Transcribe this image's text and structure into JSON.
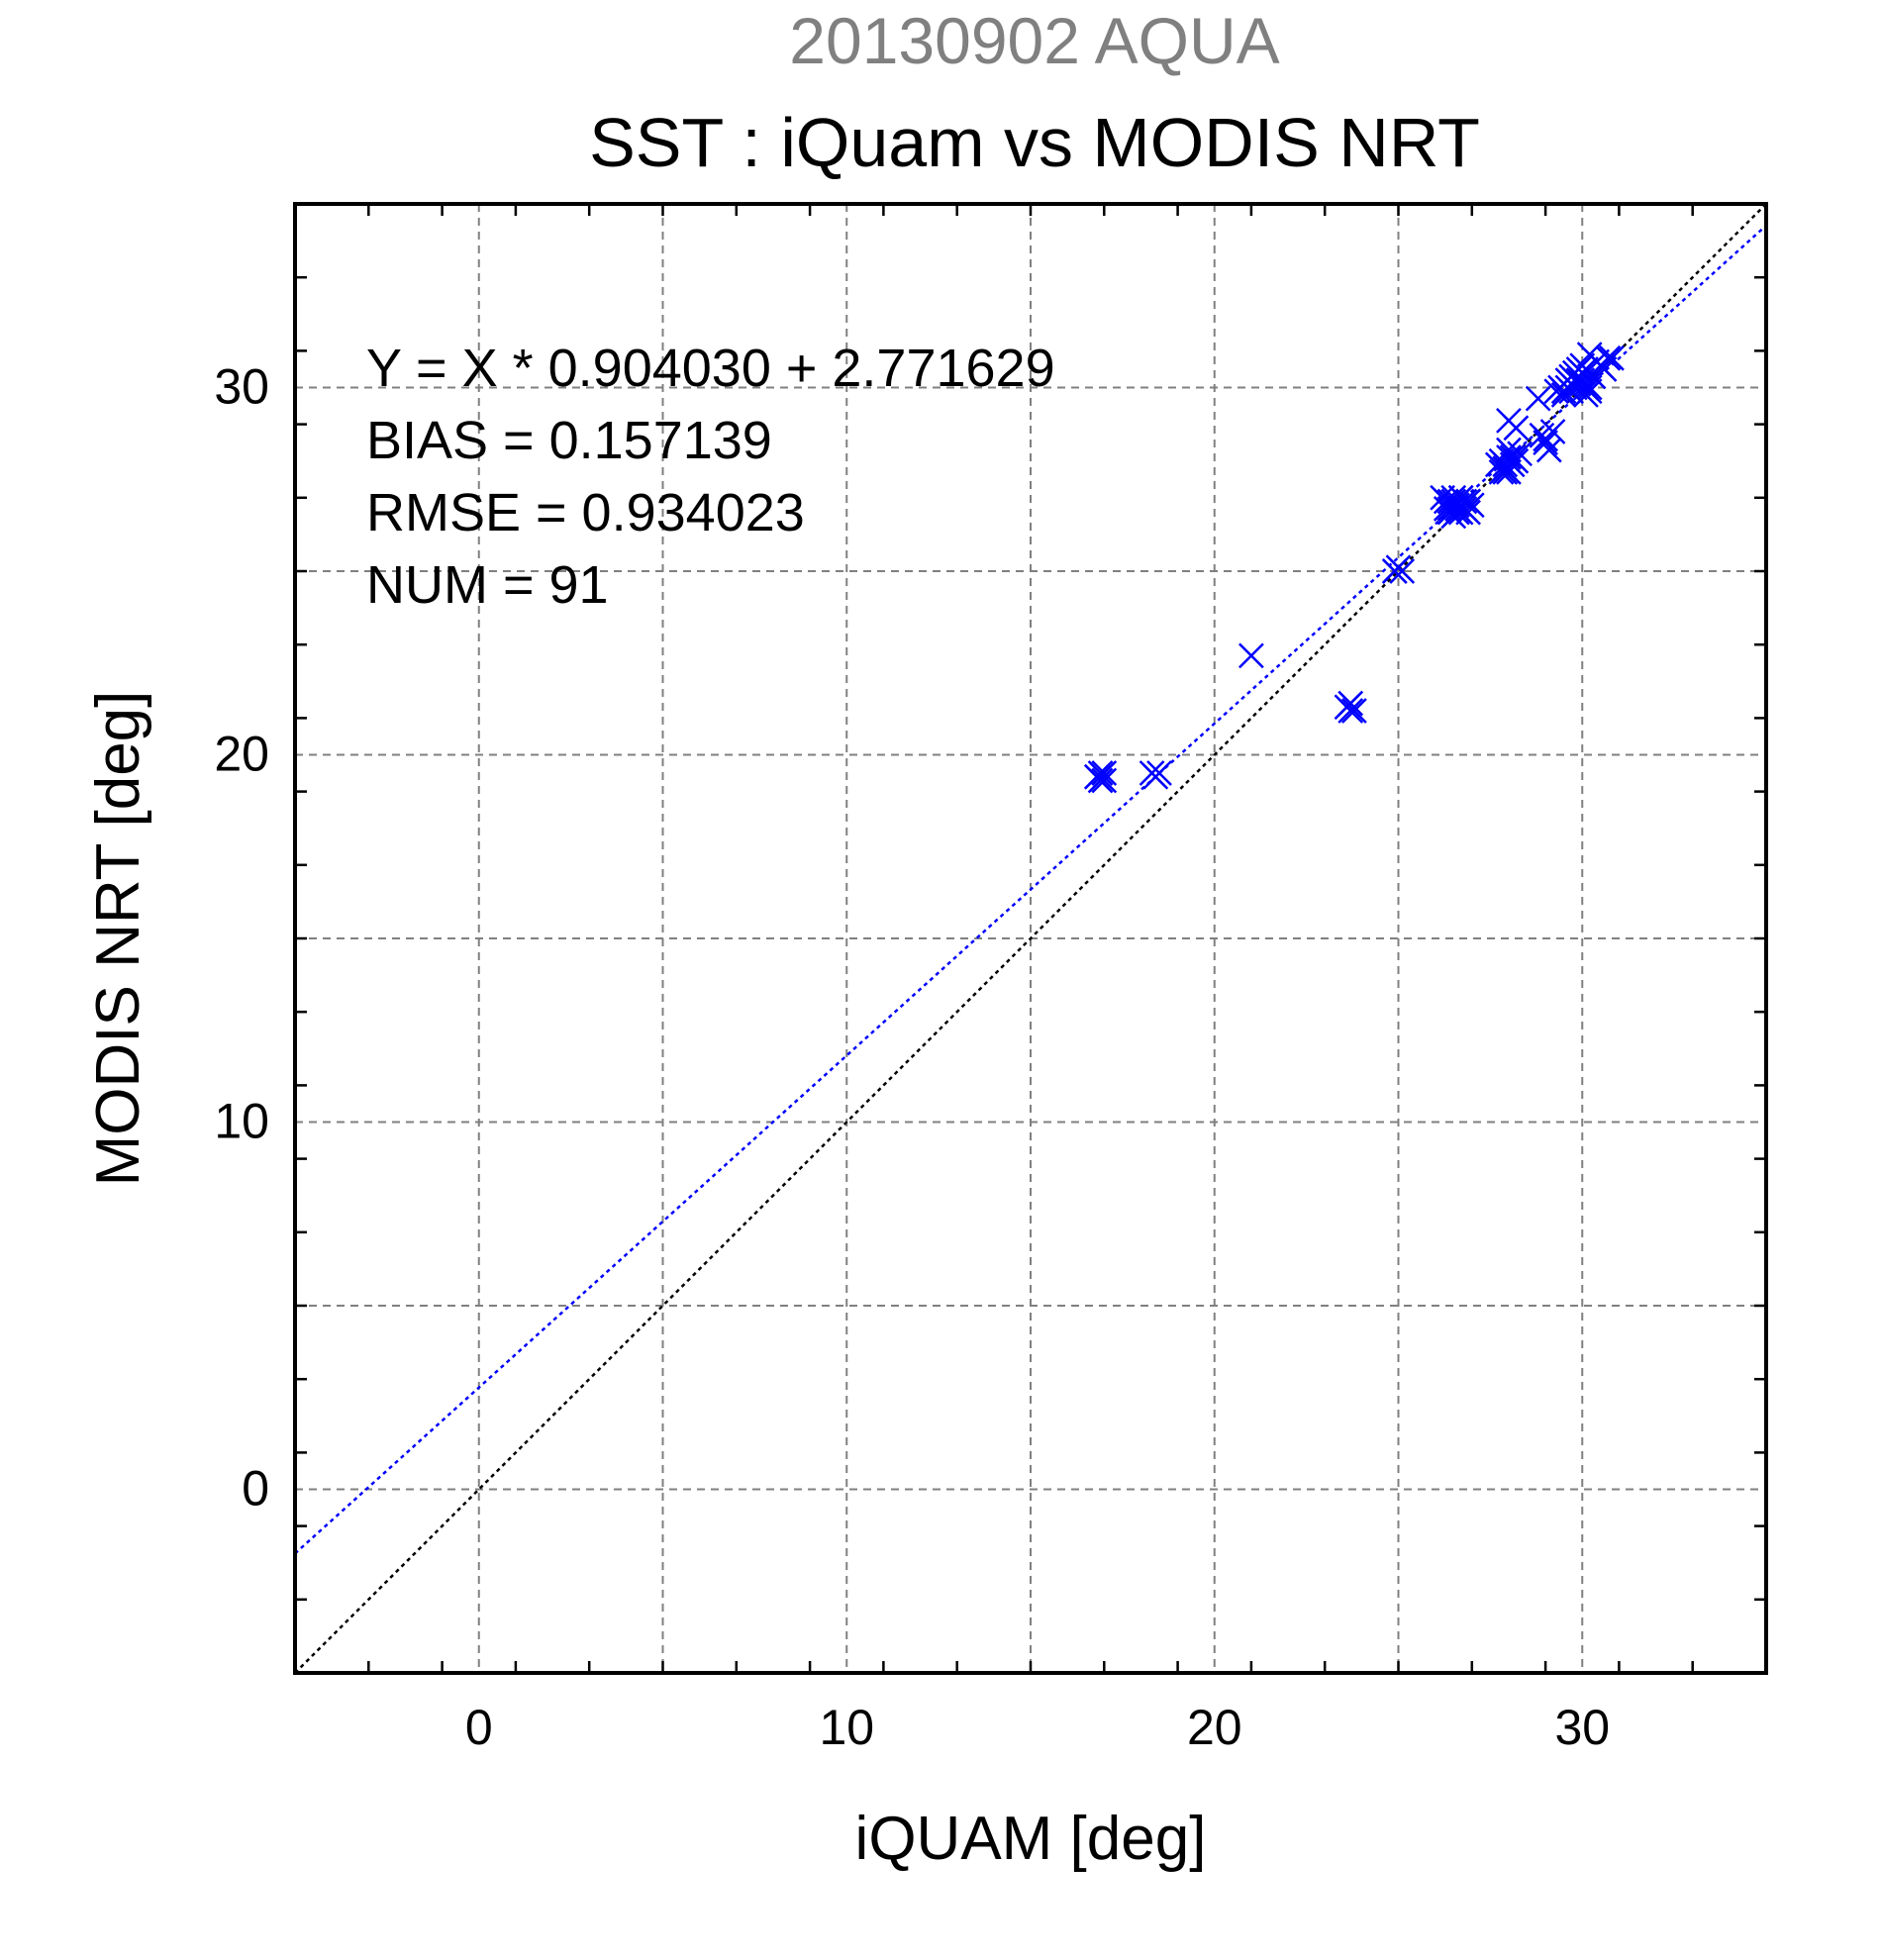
{
  "subtitle": "20130902 AQUA",
  "chart_data": {
    "type": "scatter",
    "title": "SST : iQuam vs MODIS NRT",
    "xlabel": "iQUAM [deg]",
    "ylabel": "MODIS NRT [deg]",
    "xlim": [
      -5,
      35
    ],
    "ylim": [
      -5,
      35
    ],
    "xticks": [
      0,
      10,
      20,
      30
    ],
    "yticks": [
      0,
      10,
      20,
      30
    ],
    "grid": true,
    "grid_style": "dashed",
    "marker": "x",
    "series_color": "#0000ff",
    "stats": [
      "Y = X * 0.904030 + 2.771629",
      "BIAS = 0.157139",
      "RMSE = 0.934023",
      "NUM = 91"
    ],
    "reference_lines": [
      {
        "slope": 1.0,
        "intercept": 0.0,
        "color": "#000000",
        "style": "dotted"
      },
      {
        "slope": 0.90403,
        "intercept": 2.771629,
        "color": "#0000ff",
        "style": "dotted"
      }
    ],
    "points": {
      "x": [
        16.8,
        16.9,
        17.0,
        16.8,
        17.0,
        16.9,
        18.3,
        18.5,
        18.4,
        21.0,
        23.6,
        23.7,
        23.7,
        23.8,
        24.9,
        25.0,
        25.1,
        24.9,
        26.2,
        26.3,
        26.4,
        26.5,
        26.6,
        26.7,
        26.8,
        26.9,
        26.4,
        26.5,
        26.6,
        26.7,
        26.3,
        26.5,
        26.8,
        27.0,
        26.6,
        26.4,
        26.7,
        26.9,
        27.7,
        27.8,
        27.9,
        28.0,
        28.1,
        28.2,
        27.8,
        27.9,
        28.0,
        28.1,
        28.0,
        28.2,
        27.9,
        28.3,
        28.0,
        28.9,
        29.0,
        29.1,
        29.2,
        29.0,
        28.8,
        29.3,
        29.4,
        29.5,
        29.6,
        29.7,
        29.8,
        29.9,
        30.0,
        30.1,
        30.2,
        29.8,
        29.9,
        30.0,
        30.1,
        29.7,
        30.2,
        30.3,
        30.0,
        29.9,
        30.1,
        30.4,
        30.2,
        30.5,
        30.7,
        30.8,
        29.6,
        29.8,
        30.0,
        30.3,
        29.5,
        30.1,
        30.6
      ],
      "y": [
        19.4,
        19.5,
        19.3,
        19.4,
        19.5,
        19.3,
        19.5,
        19.5,
        19.4,
        22.7,
        21.3,
        21.2,
        21.4,
        21.2,
        25.0,
        25.1,
        25.0,
        25.0,
        27.0,
        26.9,
        26.6,
        26.5,
        26.8,
        27.0,
        26.7,
        26.9,
        26.7,
        26.9,
        26.6,
        26.6,
        26.7,
        27.0,
        26.9,
        26.8,
        26.7,
        26.9,
        27.0,
        26.6,
        27.9,
        28.0,
        27.8,
        27.7,
        27.9,
        28.0,
        27.7,
        27.9,
        28.1,
        28.1,
        29.1,
        28.9,
        27.7,
        28.2,
        28.3,
        28.7,
        28.5,
        28.3,
        28.8,
        28.6,
        29.7,
        29.9,
        30.0,
        29.8,
        30.0,
        30.3,
        30.2,
        30.1,
        30.4,
        30.0,
        29.9,
        30.0,
        30.5,
        30.2,
        30.1,
        29.9,
        30.0,
        30.3,
        30.6,
        30.2,
        30.5,
        30.7,
        30.9,
        30.6,
        30.8,
        30.8,
        30.2,
        30.4,
        30.1,
        30.3,
        29.9,
        29.8,
        30.5
      ]
    }
  }
}
